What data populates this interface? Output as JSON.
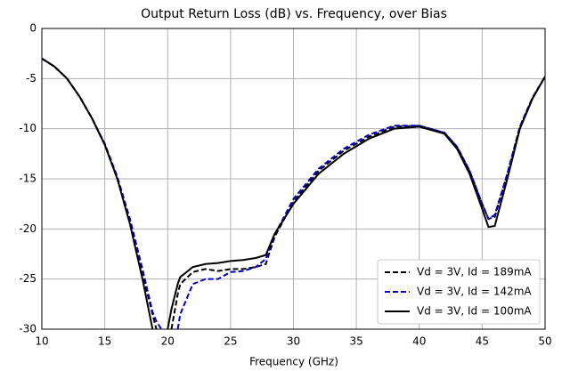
{
  "chart_data": {
    "type": "line",
    "title": "Output Return Loss (dB) vs. Frequency, over Bias",
    "x_label": "Frequency (GHz)",
    "x": [
      10,
      11,
      12,
      13,
      14,
      15,
      16,
      17,
      18,
      18.8,
      19.1,
      19.5,
      20,
      20.3,
      20.8,
      21,
      22,
      23,
      24,
      25,
      26,
      27,
      27.8,
      28.5,
      30,
      32,
      34,
      36,
      38,
      40,
      42,
      43,
      44,
      45,
      45.5,
      46,
      47,
      48,
      49,
      50
    ],
    "series": [
      {
        "name": "Vd = 3V, Id = 189mA",
        "color": "#000000",
        "linestyle": "dashed",
        "values": [
          -3,
          -3.8,
          -5,
          -6.8,
          -9,
          -11.6,
          -15,
          -19.3,
          -24.5,
          -28.5,
          -30,
          null,
          null,
          -30,
          -26.5,
          -25.5,
          -24.3,
          -24,
          -24.2,
          -24,
          -24,
          -23.8,
          -23.5,
          -20.8,
          -17.3,
          -14.2,
          -12.2,
          -10.8,
          -9.8,
          -9.7,
          -10.4,
          -11.8,
          -14.2,
          -17.5,
          -19,
          -18.8,
          -14.5,
          -9.8,
          -6.9,
          -4.8
        ]
      },
      {
        "name": "Vd = 3V, Id = 142mA",
        "color": "#0000cc",
        "linestyle": "dashed",
        "values": [
          -3,
          -3.8,
          -5,
          -6.8,
          -9,
          -11.5,
          -14.8,
          -19,
          -24,
          -28.3,
          -29.2,
          -30,
          null,
          null,
          -30,
          -28.5,
          -25.5,
          -25,
          -25,
          -24.3,
          -24.2,
          -23.8,
          -23,
          -20.6,
          -17,
          -14,
          -12,
          -10.6,
          -9.7,
          -9.7,
          -10.4,
          -11.8,
          -14.2,
          -17.5,
          -19,
          -18.6,
          -14.5,
          -9.8,
          -6.9,
          -4.8
        ]
      },
      {
        "name": "Vd = 3V, Id = 100mA",
        "color": "#000000",
        "linestyle": "solid",
        "values": [
          -3,
          -3.8,
          -5,
          -6.8,
          -9,
          -11.6,
          -15,
          -19.5,
          -25,
          -30,
          null,
          null,
          -30,
          -28,
          -25.5,
          -24.8,
          -23.8,
          -23.5,
          -23.4,
          -23.2,
          -23.1,
          -22.9,
          -22.6,
          -20.5,
          -17.5,
          -14.5,
          -12.5,
          -11,
          -10,
          -9.8,
          -10.5,
          -12,
          -14.5,
          -18,
          -19.8,
          -19.7,
          -15,
          -10,
          -7,
          -4.8
        ]
      }
    ],
    "xlim": [
      10,
      50
    ],
    "xticks": [
      10,
      15,
      20,
      25,
      30,
      35,
      40,
      45,
      50
    ],
    "ylim": [
      -30,
      0
    ],
    "yticks": [
      0,
      -5,
      -10,
      -15,
      -20,
      -25,
      -30
    ],
    "grid": true,
    "legend": "lower right"
  }
}
